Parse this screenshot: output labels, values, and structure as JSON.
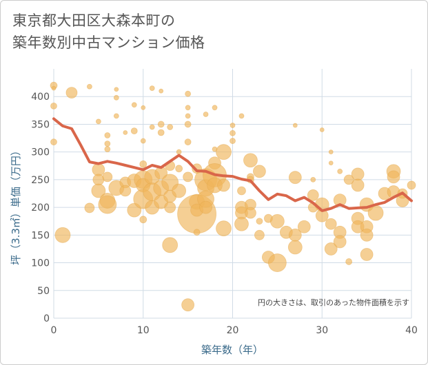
{
  "chart_data": {
    "type": "scatter",
    "title": "東京都大田区大森本町の\n築年数別中古マンション価格",
    "xlabel": "築年数（年）",
    "ylabel": "坪（3.3㎡）単価（万円）",
    "xlim": [
      0,
      40
    ],
    "ylim": [
      0,
      450
    ],
    "xticks": [
      0,
      10,
      20,
      30,
      40
    ],
    "yticks": [
      0,
      50,
      100,
      150,
      200,
      250,
      300,
      350,
      400
    ],
    "grid": true,
    "annotation": "円の大きさは、取引のあった物件面積を示す",
    "colors": {
      "bubble": "#f0b55a",
      "line": "#d9664a",
      "grid": "#d0dbe6"
    },
    "series": [
      {
        "type": "line",
        "x": [
          0,
          1,
          2,
          3,
          4,
          5,
          6,
          7,
          8,
          9,
          10,
          11,
          12,
          13,
          14,
          15,
          16,
          17,
          18,
          19,
          20,
          21,
          22,
          23,
          24,
          25,
          26,
          27,
          28,
          29,
          30,
          31,
          32,
          33,
          34,
          35,
          36,
          37,
          38,
          39,
          40
        ],
        "y": [
          360,
          347,
          342,
          313,
          282,
          279,
          283,
          280,
          276,
          272,
          268,
          276,
          272,
          283,
          294,
          283,
          266,
          265,
          259,
          257,
          256,
          251,
          248,
          230,
          214,
          224,
          221,
          212,
          218,
          208,
          194,
          198,
          205,
          198,
          199,
          200,
          205,
          209,
          218,
          226,
          212
        ]
      },
      {
        "type": "scatter",
        "points": [
          {
            "x": 0,
            "y": 420,
            "s": 10
          },
          {
            "x": 0,
            "y": 415,
            "s": 6
          },
          {
            "x": 0,
            "y": 383,
            "s": 9
          },
          {
            "x": 0,
            "y": 318,
            "s": 9
          },
          {
            "x": 1,
            "y": 150,
            "s": 22
          },
          {
            "x": 2,
            "y": 407,
            "s": 16
          },
          {
            "x": 4,
            "y": 418,
            "s": 7
          },
          {
            "x": 4,
            "y": 199,
            "s": 14
          },
          {
            "x": 5,
            "y": 355,
            "s": 7
          },
          {
            "x": 5,
            "y": 268,
            "s": 18
          },
          {
            "x": 5,
            "y": 250,
            "s": 16
          },
          {
            "x": 5,
            "y": 230,
            "s": 20
          },
          {
            "x": 6,
            "y": 330,
            "s": 8
          },
          {
            "x": 6,
            "y": 315,
            "s": 8
          },
          {
            "x": 6,
            "y": 305,
            "s": 8
          },
          {
            "x": 6,
            "y": 255,
            "s": 14
          },
          {
            "x": 6,
            "y": 212,
            "s": 22
          },
          {
            "x": 6,
            "y": 205,
            "s": 26
          },
          {
            "x": 7,
            "y": 413,
            "s": 6
          },
          {
            "x": 7,
            "y": 398,
            "s": 7
          },
          {
            "x": 7,
            "y": 365,
            "s": 7
          },
          {
            "x": 7,
            "y": 235,
            "s": 22
          },
          {
            "x": 8,
            "y": 335,
            "s": 6
          },
          {
            "x": 8,
            "y": 245,
            "s": 16
          },
          {
            "x": 8,
            "y": 230,
            "s": 16
          },
          {
            "x": 9,
            "y": 385,
            "s": 7
          },
          {
            "x": 9,
            "y": 338,
            "s": 9
          },
          {
            "x": 9,
            "y": 248,
            "s": 20
          },
          {
            "x": 9,
            "y": 195,
            "s": 20
          },
          {
            "x": 10,
            "y": 380,
            "s": 6
          },
          {
            "x": 10,
            "y": 320,
            "s": 7
          },
          {
            "x": 10,
            "y": 278,
            "s": 10
          },
          {
            "x": 10,
            "y": 250,
            "s": 26
          },
          {
            "x": 10,
            "y": 240,
            "s": 20
          },
          {
            "x": 10,
            "y": 215,
            "s": 28
          },
          {
            "x": 10,
            "y": 178,
            "s": 10
          },
          {
            "x": 11,
            "y": 415,
            "s": 7
          },
          {
            "x": 11,
            "y": 345,
            "s": 7
          },
          {
            "x": 11,
            "y": 255,
            "s": 22
          },
          {
            "x": 11,
            "y": 228,
            "s": 26
          },
          {
            "x": 11,
            "y": 200,
            "s": 20
          },
          {
            "x": 12,
            "y": 410,
            "s": 6
          },
          {
            "x": 12,
            "y": 350,
            "s": 9
          },
          {
            "x": 12,
            "y": 335,
            "s": 9
          },
          {
            "x": 12,
            "y": 262,
            "s": 18
          },
          {
            "x": 12,
            "y": 235,
            "s": 22
          },
          {
            "x": 12,
            "y": 210,
            "s": 20
          },
          {
            "x": 13,
            "y": 345,
            "s": 8
          },
          {
            "x": 13,
            "y": 275,
            "s": 14
          },
          {
            "x": 13,
            "y": 245,
            "s": 24
          },
          {
            "x": 13,
            "y": 220,
            "s": 18
          },
          {
            "x": 13,
            "y": 200,
            "s": 16
          },
          {
            "x": 13,
            "y": 132,
            "s": 22
          },
          {
            "x": 14,
            "y": 300,
            "s": 7
          },
          {
            "x": 14,
            "y": 270,
            "s": 10
          },
          {
            "x": 14,
            "y": 230,
            "s": 20
          },
          {
            "x": 15,
            "y": 405,
            "s": 8
          },
          {
            "x": 15,
            "y": 380,
            "s": 7
          },
          {
            "x": 15,
            "y": 365,
            "s": 7
          },
          {
            "x": 15,
            "y": 350,
            "s": 9
          },
          {
            "x": 15,
            "y": 318,
            "s": 9
          },
          {
            "x": 15,
            "y": 255,
            "s": 14
          },
          {
            "x": 15,
            "y": 24,
            "s": 18
          },
          {
            "x": 16,
            "y": 270,
            "s": 14
          },
          {
            "x": 16,
            "y": 210,
            "s": 22
          },
          {
            "x": 16,
            "y": 188,
            "s": 56
          },
          {
            "x": 16,
            "y": 195,
            "s": 18
          },
          {
            "x": 16,
            "y": 155,
            "s": 9
          },
          {
            "x": 17,
            "y": 368,
            "s": 7
          },
          {
            "x": 17,
            "y": 250,
            "s": 32
          },
          {
            "x": 17,
            "y": 235,
            "s": 24
          },
          {
            "x": 17,
            "y": 215,
            "s": 24
          },
          {
            "x": 17,
            "y": 200,
            "s": 18
          },
          {
            "x": 18,
            "y": 380,
            "s": 7
          },
          {
            "x": 18,
            "y": 305,
            "s": 7
          },
          {
            "x": 18,
            "y": 280,
            "s": 18
          },
          {
            "x": 18,
            "y": 258,
            "s": 34
          },
          {
            "x": 18,
            "y": 240,
            "s": 22
          },
          {
            "x": 19,
            "y": 300,
            "s": 22
          },
          {
            "x": 19,
            "y": 240,
            "s": 18
          },
          {
            "x": 19,
            "y": 162,
            "s": 22
          },
          {
            "x": 20,
            "y": 348,
            "s": 7
          },
          {
            "x": 20,
            "y": 334,
            "s": 8
          },
          {
            "x": 20,
            "y": 320,
            "s": 8
          },
          {
            "x": 21,
            "y": 365,
            "s": 7
          },
          {
            "x": 21,
            "y": 230,
            "s": 12
          },
          {
            "x": 21,
            "y": 200,
            "s": 18
          },
          {
            "x": 21,
            "y": 190,
            "s": 18
          },
          {
            "x": 21,
            "y": 170,
            "s": 20
          },
          {
            "x": 22,
            "y": 285,
            "s": 20
          },
          {
            "x": 22,
            "y": 255,
            "s": 10
          },
          {
            "x": 22,
            "y": 250,
            "s": 10
          },
          {
            "x": 22,
            "y": 205,
            "s": 16
          },
          {
            "x": 22,
            "y": 190,
            "s": 16
          },
          {
            "x": 23,
            "y": 265,
            "s": 18
          },
          {
            "x": 23,
            "y": 175,
            "s": 9
          },
          {
            "x": 23,
            "y": 150,
            "s": 14
          },
          {
            "x": 24,
            "y": 180,
            "s": 12
          },
          {
            "x": 24,
            "y": 110,
            "s": 18
          },
          {
            "x": 25,
            "y": 175,
            "s": 20
          },
          {
            "x": 25,
            "y": 100,
            "s": 26
          },
          {
            "x": 26,
            "y": 155,
            "s": 18
          },
          {
            "x": 27,
            "y": 348,
            "s": 6
          },
          {
            "x": 27,
            "y": 254,
            "s": 18
          },
          {
            "x": 27,
            "y": 150,
            "s": 18
          },
          {
            "x": 27,
            "y": 128,
            "s": 20
          },
          {
            "x": 28,
            "y": 165,
            "s": 18
          },
          {
            "x": 29,
            "y": 250,
            "s": 7
          },
          {
            "x": 29,
            "y": 222,
            "s": 16
          },
          {
            "x": 29,
            "y": 200,
            "s": 14
          },
          {
            "x": 30,
            "y": 340,
            "s": 6
          },
          {
            "x": 30,
            "y": 205,
            "s": 20
          },
          {
            "x": 30,
            "y": 185,
            "s": 18
          },
          {
            "x": 31,
            "y": 300,
            "s": 6
          },
          {
            "x": 31,
            "y": 280,
            "s": 6
          },
          {
            "x": 31,
            "y": 170,
            "s": 16
          },
          {
            "x": 31,
            "y": 125,
            "s": 18
          },
          {
            "x": 32,
            "y": 265,
            "s": 7
          },
          {
            "x": 32,
            "y": 213,
            "s": 18
          },
          {
            "x": 32,
            "y": 155,
            "s": 18
          },
          {
            "x": 32,
            "y": 138,
            "s": 18
          },
          {
            "x": 33,
            "y": 250,
            "s": 14
          },
          {
            "x": 33,
            "y": 102,
            "s": 9
          },
          {
            "x": 34,
            "y": 260,
            "s": 18
          },
          {
            "x": 34,
            "y": 240,
            "s": 18
          },
          {
            "x": 34,
            "y": 180,
            "s": 18
          },
          {
            "x": 34,
            "y": 165,
            "s": 18
          },
          {
            "x": 35,
            "y": 205,
            "s": 20
          },
          {
            "x": 35,
            "y": 165,
            "s": 18
          },
          {
            "x": 35,
            "y": 150,
            "s": 18
          },
          {
            "x": 35,
            "y": 115,
            "s": 18
          },
          {
            "x": 36,
            "y": 190,
            "s": 22
          },
          {
            "x": 37,
            "y": 225,
            "s": 18
          },
          {
            "x": 38,
            "y": 265,
            "s": 20
          },
          {
            "x": 38,
            "y": 255,
            "s": 18
          },
          {
            "x": 38,
            "y": 228,
            "s": 18
          },
          {
            "x": 39,
            "y": 212,
            "s": 18
          },
          {
            "x": 39,
            "y": 225,
            "s": 14
          },
          {
            "x": 40,
            "y": 240,
            "s": 12
          }
        ]
      }
    ]
  }
}
